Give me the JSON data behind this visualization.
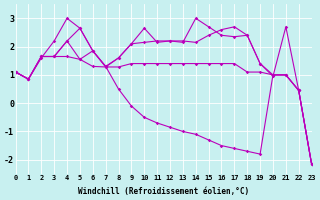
{
  "xlabel": "Windchill (Refroidissement éolien,°C)",
  "background_color": "#c8f0f0",
  "line_color": "#bb00bb",
  "xlim": [
    0,
    23
  ],
  "ylim": [
    -2.5,
    3.5
  ],
  "yticks": [
    -2,
    -1,
    0,
    1,
    2,
    3
  ],
  "xticks": [
    0,
    1,
    2,
    3,
    4,
    5,
    6,
    7,
    8,
    9,
    10,
    11,
    12,
    13,
    14,
    15,
    16,
    17,
    18,
    19,
    20,
    21,
    22,
    23
  ],
  "lines": [
    [
      1.1,
      0.85,
      1.6,
      2.2,
      3.0,
      2.65,
      1.85,
      1.3,
      1.6,
      2.1,
      2.65,
      2.15,
      2.2,
      2.15,
      3.0,
      2.7,
      2.4,
      2.35,
      2.4,
      1.4,
      0.95,
      2.7,
      0.45,
      -2.15
    ],
    [
      1.1,
      0.85,
      1.65,
      1.65,
      2.2,
      1.55,
      1.85,
      1.28,
      1.6,
      2.1,
      2.15,
      2.2,
      2.2,
      2.2,
      2.15,
      2.4,
      2.6,
      2.7,
      2.4,
      1.4,
      1.0,
      1.0,
      0.45,
      -2.15
    ],
    [
      1.1,
      0.85,
      1.65,
      1.65,
      1.65,
      1.55,
      1.3,
      1.28,
      1.28,
      1.4,
      1.4,
      1.4,
      1.4,
      1.4,
      1.4,
      1.4,
      1.4,
      1.4,
      1.1,
      1.1,
      1.0,
      1.0,
      0.45,
      -2.15
    ],
    [
      1.1,
      0.85,
      1.65,
      1.65,
      2.2,
      2.65,
      1.85,
      1.3,
      0.5,
      -0.1,
      -0.5,
      -0.7,
      -0.85,
      -1.0,
      -1.1,
      -1.3,
      -1.5,
      -1.6,
      -1.7,
      -1.8,
      1.0,
      1.0,
      0.45,
      -2.15
    ]
  ]
}
